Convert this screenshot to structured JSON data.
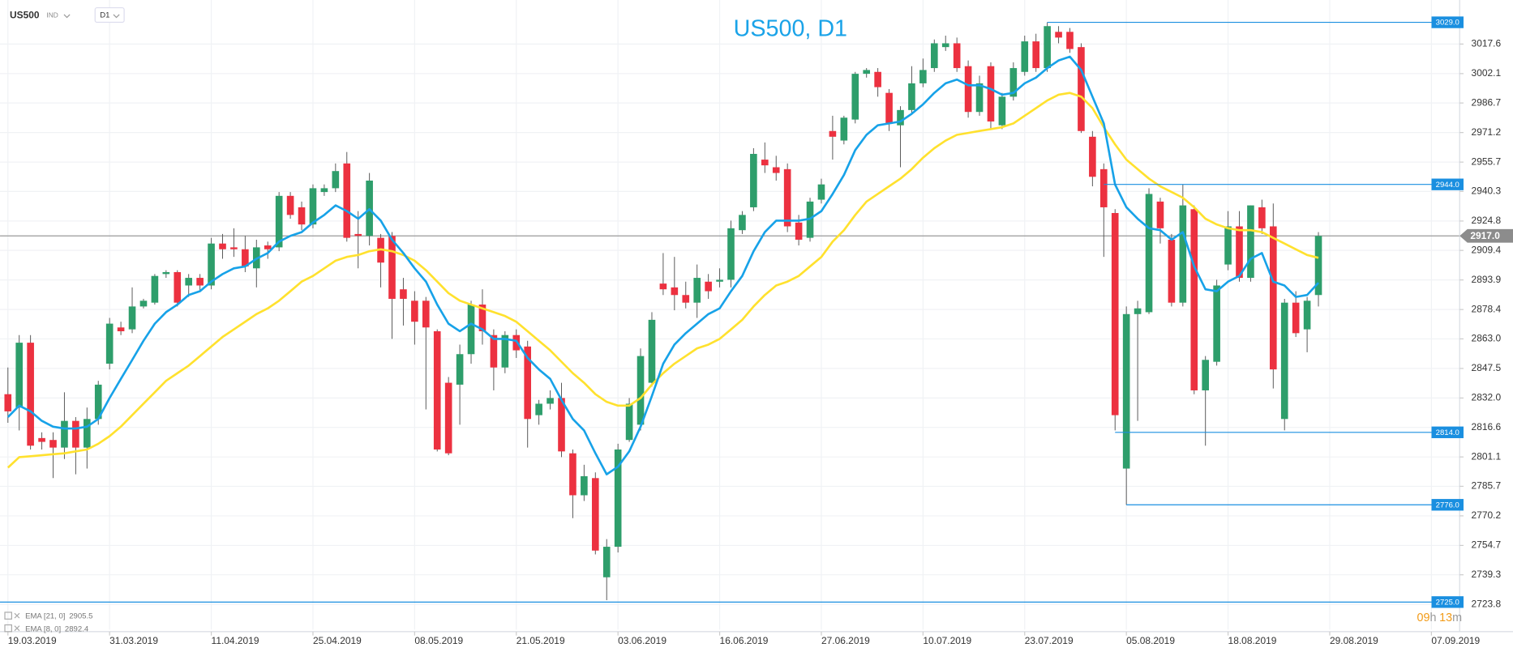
{
  "chart_data": {
    "type": "candlestick",
    "title": "US500, D1",
    "symbol": "US500",
    "symbol_type": "IND",
    "timeframe": "D1",
    "up_color": "#2e9e6b",
    "down_color": "#ec3140",
    "grid": true,
    "open": [
      2834,
      2827,
      2861,
      2811,
      2810,
      2806,
      2820,
      2806,
      2821,
      2850,
      2869,
      2868,
      2880,
      2882,
      2897,
      2898,
      2891,
      2895,
      2891,
      2913,
      2911,
      2910,
      2900,
      2912,
      2911,
      2938,
      2932,
      2923,
      2940,
      2942,
      2955,
      2918,
      2917,
      2916,
      2917,
      2889,
      2883,
      2883,
      2867,
      2840,
      2839,
      2855,
      2881,
      2865,
      2848,
      2865,
      2859,
      2823,
      2829,
      2832,
      2803,
      2781,
      2790,
      2738,
      2754,
      2810,
      2818,
      2840,
      2892,
      2890,
      2886,
      2882,
      2893,
      2893,
      2894,
      2920,
      2932,
      2957,
      2953,
      2952,
      2924,
      2916,
      2936,
      2972,
      2967,
      2978,
      3002,
      3003,
      2992,
      2975,
      2983,
      2997,
      3005,
      3016,
      3018,
      3006,
      2982,
      3006,
      2975,
      2990,
      3003,
      3019,
      3005,
      3024,
      3024,
      3016,
      2969,
      2952,
      2929,
      2795,
      2876,
      2877,
      2935,
      2915,
      2882,
      2931,
      2836,
      2851,
      2902,
      2922,
      2895,
      2932,
      2922,
      2821,
      2882,
      2868,
      2886
    ],
    "high": [
      2848,
      2865,
      2865,
      2814,
      2814,
      2835,
      2822,
      2827,
      2841,
      2874,
      2872,
      2890,
      2884,
      2897,
      2899,
      2899,
      2897,
      2897,
      2916,
      2918,
      2921,
      2917,
      2915,
      2914,
      2940,
      2940,
      2935,
      2944,
      2944,
      2955,
      2961,
      2930,
      2950,
      2918,
      2919,
      2895,
      2888,
      2885,
      2868,
      2843,
      2860,
      2883,
      2889,
      2868,
      2867,
      2868,
      2862,
      2831,
      2836,
      2840,
      2805,
      2797,
      2793,
      2758,
      2808,
      2832,
      2858,
      2877,
      2908,
      2906,
      2893,
      2902,
      2897,
      2900,
      2925,
      2930,
      2963,
      2966,
      2959,
      2955,
      2928,
      2937,
      2947,
      2980,
      2980,
      3003,
      3005,
      3005,
      2994,
      2985,
      3006,
      3010,
      3020,
      3022,
      3021,
      3009,
      3001,
      3008,
      2992,
      3008,
      3022,
      3023,
      3029,
      3027,
      3026,
      3018,
      2972,
      2955,
      2931,
      2880,
      2883,
      2942,
      2937,
      2918,
      2944,
      2933,
      2854,
      2894,
      2930,
      2930,
      2933,
      2936,
      2934,
      2884,
      2888,
      2885,
      2919
    ],
    "low": [
      2819,
      2815,
      2805,
      2805,
      2790,
      2800,
      2792,
      2795,
      2818,
      2847,
      2865,
      2866,
      2879,
      2881,
      2895,
      2880,
      2885,
      2888,
      2889,
      2905,
      2906,
      2898,
      2890,
      2905,
      2909,
      2926,
      2920,
      2921,
      2938,
      2940,
      2914,
      2900,
      2912,
      2890,
      2863,
      2870,
      2860,
      2826,
      2804,
      2802,
      2818,
      2850,
      2860,
      2836,
      2845,
      2853,
      2806,
      2818,
      2826,
      2801,
      2769,
      2778,
      2750,
      2726,
      2751,
      2809,
      2815,
      2838,
      2886,
      2878,
      2879,
      2874,
      2884,
      2890,
      2890,
      2918,
      2930,
      2950,
      2946,
      2919,
      2912,
      2914,
      2934,
      2957,
      2965,
      2976,
      3000,
      2990,
      2972,
      2953,
      2981,
      2995,
      3003,
      3014,
      3003,
      2979,
      2980,
      2973,
      2973,
      2988,
      3001,
      3003,
      3003,
      3018,
      3013,
      2971,
      2943,
      2906,
      2815,
      2776,
      2820,
      2876,
      2913,
      2880,
      2880,
      2834,
      2807,
      2849,
      2899,
      2893,
      2893,
      2918,
      2837,
      2815,
      2864,
      2856,
      2880
    ],
    "close": [
      2825,
      2861,
      2807,
      2809,
      2806,
      2820,
      2806,
      2821,
      2839,
      2871,
      2867,
      2880,
      2883,
      2896,
      2898,
      2882,
      2895,
      2891,
      2913,
      2910,
      2910,
      2901,
      2911,
      2910,
      2938,
      2928,
      2923,
      2942,
      2942,
      2951,
      2916,
      2917,
      2946,
      2903,
      2884,
      2884,
      2872,
      2869,
      2805,
      2803,
      2855,
      2881,
      2867,
      2848,
      2865,
      2857,
      2821,
      2829,
      2832,
      2804,
      2781,
      2791,
      2752,
      2754,
      2805,
      2829,
      2854,
      2873,
      2889,
      2886,
      2882,
      2895,
      2888,
      2894,
      2921,
      2928,
      2960,
      2954,
      2950,
      2922,
      2915,
      2935,
      2944,
      2969,
      2979,
      3002,
      3004,
      2995,
      2976,
      2983,
      2997,
      3004,
      3018,
      3018,
      3005,
      2982,
      2997,
      2977,
      2990,
      3005,
      3019,
      3005,
      3027,
      3021,
      3015,
      2972,
      2948,
      2932,
      2823,
      2876,
      2879,
      2939,
      2921,
      2882,
      2933,
      2836,
      2852,
      2891,
      2922,
      2895,
      2933,
      2921,
      2847,
      2882,
      2866,
      2883,
      2917
    ],
    "series": [
      {
        "name": "EMA [21, 0]",
        "color": "#ffe12e",
        "legend_value": 2905.5,
        "values": [
          2795.5,
          2801,
          2801.5,
          2802,
          2802.5,
          2803,
          2804,
          2805,
          2808,
          2812,
          2817,
          2823,
          2829,
          2835,
          2841,
          2845,
          2849,
          2854,
          2859,
          2864,
          2868,
          2872,
          2876,
          2879,
          2883,
          2888,
          2893,
          2896,
          2900,
          2904,
          2906,
          2907,
          2909,
          2910,
          2909,
          2907,
          2904,
          2899,
          2893,
          2887,
          2883,
          2881,
          2879,
          2877,
          2875,
          2872,
          2867,
          2862,
          2857,
          2851,
          2845,
          2840,
          2834,
          2830,
          2828,
          2828,
          2832,
          2839,
          2845,
          2850,
          2854,
          2858,
          2860,
          2863,
          2868,
          2873,
          2880,
          2886,
          2891,
          2893,
          2896,
          2901,
          2906,
          2914,
          2920,
          2928,
          2935,
          2939,
          2943,
          2947,
          2952,
          2958,
          2963,
          2967,
          2970,
          2971,
          2972,
          2973,
          2974,
          2976,
          2980,
          2984,
          2988,
          2991,
          2992,
          2990,
          2984,
          2974,
          2965,
          2957,
          2952,
          2947,
          2943,
          2940,
          2937,
          2932,
          2926,
          2923,
          2921,
          2920,
          2920,
          2919,
          2916,
          2913,
          2910,
          2907,
          2905.5
        ]
      },
      {
        "name": "EMA [8, 0]",
        "color": "#17a2e8",
        "legend_value": 2892.4,
        "values": [
          2822,
          2828,
          2825,
          2820,
          2817,
          2816,
          2816,
          2817,
          2821,
          2832,
          2842,
          2852,
          2862,
          2871,
          2877,
          2881,
          2886,
          2888,
          2893,
          2897,
          2900,
          2901,
          2905,
          2908,
          2914,
          2917,
          2919,
          2924,
          2928,
          2933,
          2930,
          2926,
          2931,
          2925,
          2915,
          2908,
          2900,
          2893,
          2881,
          2871,
          2867,
          2871,
          2868,
          2863,
          2863,
          2862,
          2853,
          2847,
          2842,
          2831,
          2821,
          2815,
          2803,
          2792,
          2796,
          2804,
          2817,
          2833,
          2850,
          2860,
          2866,
          2871,
          2876,
          2879,
          2888,
          2896,
          2909,
          2919,
          2925,
          2925,
          2925,
          2926,
          2930,
          2939,
          2949,
          2962,
          2970,
          2975,
          2976,
          2977,
          2981,
          2986,
          2992,
          2997,
          2999,
          2996,
          2996,
          2994,
          2991,
          2992,
          2997,
          3000,
          3005,
          3009,
          3011,
          3004,
          2990,
          2976,
          2944,
          2932,
          2926,
          2921,
          2920,
          2915,
          2919,
          2901,
          2889,
          2888,
          2893,
          2896,
          2905,
          2908,
          2893,
          2891,
          2885,
          2886,
          2892.4
        ]
      }
    ],
    "ylim": [
      2710.5,
      3040.7
    ],
    "yticks": [
      3017.6,
      3002.1,
      2986.7,
      2971.2,
      2955.7,
      2940.3,
      2924.8,
      2909.4,
      2893.9,
      2878.4,
      {
        "value": 2863,
        "label": "2863.0"
      },
      2847.5,
      {
        "value": 2832,
        "label": "2832.0"
      },
      2816.6,
      2801.1,
      2785.7,
      2770.2,
      2754.7,
      2739.3,
      2723.8
    ],
    "xlim": [
      -0.7,
      128.5
    ],
    "xticks": [
      {
        "value": 0,
        "label": "19.03.2019"
      },
      {
        "value": 9,
        "label": "31.03.2019"
      },
      {
        "value": 18,
        "label": "11.04.2019"
      },
      {
        "value": 27,
        "label": "25.04.2019"
      },
      {
        "value": 36,
        "label": "08.05.2019"
      },
      {
        "value": 45,
        "label": "21.05.2019"
      },
      {
        "value": 54,
        "label": "03.06.2019"
      },
      {
        "value": 63,
        "label": "16.06.2019"
      },
      {
        "value": 72,
        "label": "27.06.2019"
      },
      {
        "value": 81,
        "label": "10.07.2019"
      },
      {
        "value": 90,
        "label": "23.07.2019"
      },
      {
        "value": 99,
        "label": "05.08.2019"
      },
      {
        "value": 108,
        "label": "18.08.2019"
      },
      {
        "value": 117,
        "label": "29.08.2019"
      },
      {
        "value": 126,
        "label": "07.09.2019"
      }
    ],
    "levels": [
      {
        "value": 3029,
        "label": "3029.0"
      },
      {
        "value": 2944,
        "label": "2944.0"
      },
      {
        "value": 2814,
        "label": "2814.0"
      },
      {
        "value": 2776,
        "label": "2776.0"
      },
      {
        "value": 2725,
        "label": "2725.0"
      }
    ],
    "current_price": {
      "value": 2917,
      "label": "2917.0"
    },
    "timer": {
      "hours": "09",
      "hours_unit": "h",
      "minutes": "13",
      "minutes_unit": "m"
    }
  }
}
